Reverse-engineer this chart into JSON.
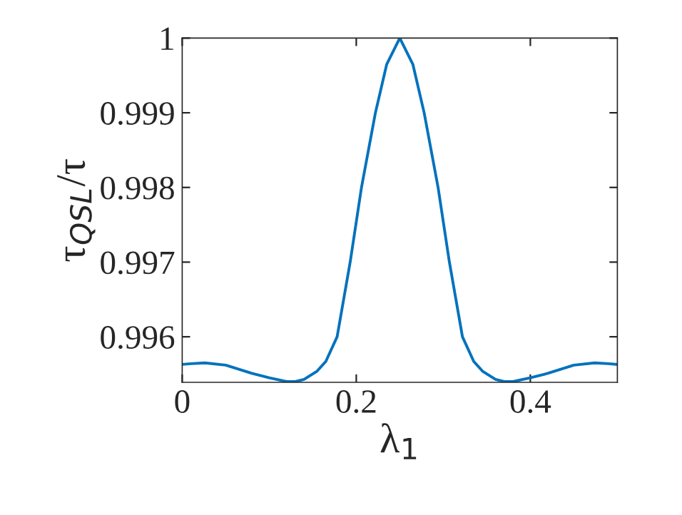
{
  "chart_data": {
    "type": "line",
    "xlabel": "λ$_{1}$",
    "ylabel": "τ$_{QSL}$/τ",
    "x": [
      0,
      0.01,
      0.026,
      0.05,
      0.08,
      0.1,
      0.12,
      0.13,
      0.14,
      0.155,
      0.165,
      0.178,
      0.193,
      0.206,
      0.222,
      0.235,
      0.25,
      0.265,
      0.278,
      0.294,
      0.307,
      0.322,
      0.335,
      0.345,
      0.36,
      0.37,
      0.38,
      0.4,
      0.42,
      0.45,
      0.474,
      0.49,
      0.5
    ],
    "series": [
      {
        "color": "#0072bd",
        "values": [
          0.99563,
          0.99564,
          0.99565,
          0.99562,
          0.99551,
          0.99545,
          0.9954,
          0.9954,
          0.99543,
          0.99554,
          0.99567,
          0.996,
          0.997,
          0.998,
          0.999,
          0.99965,
          1,
          0.99965,
          0.999,
          0.998,
          0.997,
          0.996,
          0.99567,
          0.99554,
          0.99543,
          0.9954,
          0.9954,
          0.99545,
          0.99551,
          0.99562,
          0.99565,
          0.99564,
          0.99563
        ]
      }
    ],
    "xlim": [
      0,
      0.5
    ],
    "xticks": [
      0,
      0.2,
      0.4
    ],
    "ylim": [
      0.99539,
      1
    ],
    "yticks": [
      0.996,
      0.997,
      0.998,
      0.999,
      1
    ],
    "grid": false,
    "legend": false,
    "marker": "none",
    "line_style": "solid"
  }
}
